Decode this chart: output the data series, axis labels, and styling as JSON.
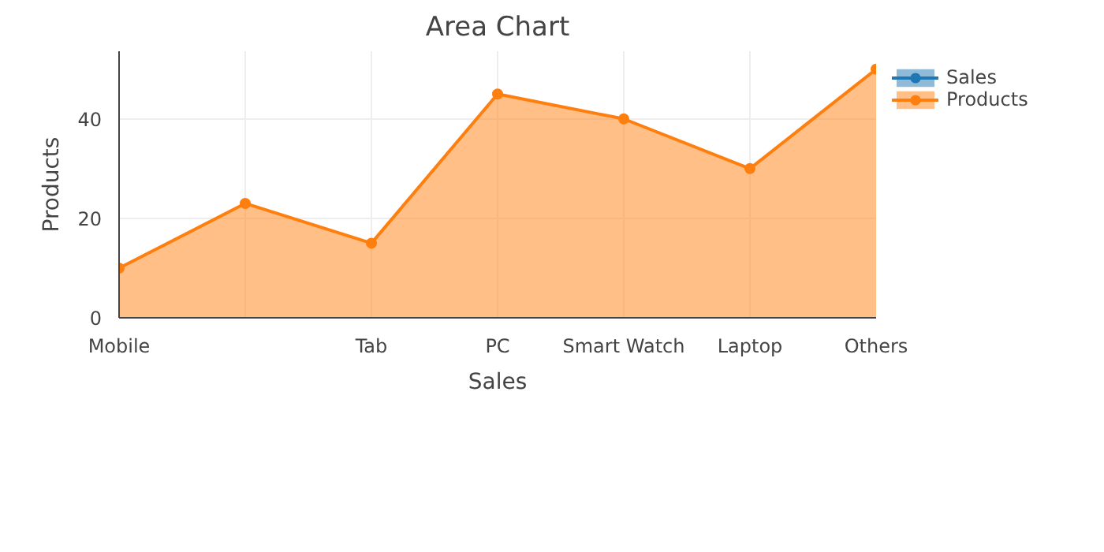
{
  "chart_data": {
    "type": "area",
    "title": "Area Chart",
    "xlabel": "Sales",
    "ylabel": "Products",
    "categories": [
      "Mobile",
      null,
      "Tab",
      "PC",
      "Smart Watch",
      "Laptop",
      "Others"
    ],
    "series": [
      {
        "name": "Sales",
        "color": "#1f77b4",
        "values": [
          null,
          null,
          null,
          null,
          null,
          null,
          null
        ]
      },
      {
        "name": "Products",
        "color": "#ff7f0e",
        "values": [
          10,
          23,
          15,
          45,
          40,
          30,
          50
        ]
      }
    ],
    "ylim": [
      0,
      53.6
    ],
    "yticks": [
      0,
      20,
      40
    ],
    "grid": true,
    "legend": "top right",
    "marker": "circle",
    "line_style": "solid"
  }
}
